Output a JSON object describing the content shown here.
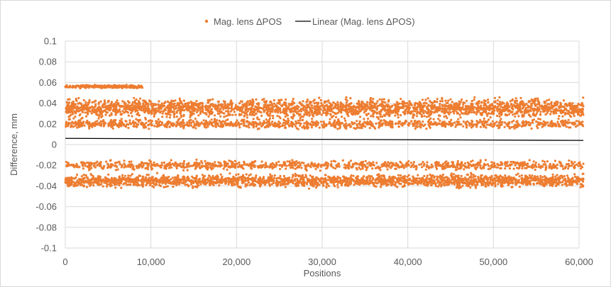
{
  "chart_data": {
    "type": "scatter",
    "xlabel": "Positions",
    "ylabel": "Difference, mm",
    "xlim": [
      0,
      60000
    ],
    "ylim": [
      -0.1,
      0.1
    ],
    "x_ticks": [
      0,
      10000,
      20000,
      30000,
      40000,
      50000,
      60000
    ],
    "x_tick_labels": [
      "0",
      "10,000",
      "20,000",
      "30,000",
      "40,000",
      "50,000",
      "60,000"
    ],
    "y_ticks": [
      0.1,
      0.08,
      0.06,
      0.04,
      0.02,
      0,
      -0.02,
      -0.04,
      -0.06,
      -0.08,
      -0.1
    ],
    "y_tick_labels": [
      "0.1",
      "0.08",
      "0.06",
      "0.04",
      "0.02",
      "0",
      "-0.02",
      "-0.04",
      "-0.06",
      "-0.08",
      "-0.1"
    ],
    "grid": true,
    "legend_position": "top",
    "series": [
      {
        "name": "Mag. lens ΔPOS",
        "kind": "scatter",
        "color": "#ed7d31",
        "x_range": [
          0,
          60500
        ],
        "bands": [
          {
            "y_center": 0.056,
            "spread": 0.002,
            "x_range": [
              0,
              9000
            ]
          },
          {
            "y_center": 0.035,
            "spread": 0.012,
            "x_range": [
              0,
              60500
            ]
          },
          {
            "y_center": 0.02,
            "spread": 0.006,
            "x_range": [
              0,
              60500
            ]
          },
          {
            "y_center": -0.02,
            "spread": 0.006,
            "x_range": [
              0,
              60500
            ]
          },
          {
            "y_center": -0.035,
            "spread": 0.008,
            "x_range": [
              0,
              60500
            ]
          }
        ],
        "y_min": -0.049,
        "y_max": 0.062
      },
      {
        "name": "Linear  (Mag. lens ΔPOS)",
        "kind": "line",
        "color": "#000000",
        "x": [
          0,
          60500
        ],
        "y": [
          0.006,
          0.004
        ]
      }
    ]
  }
}
